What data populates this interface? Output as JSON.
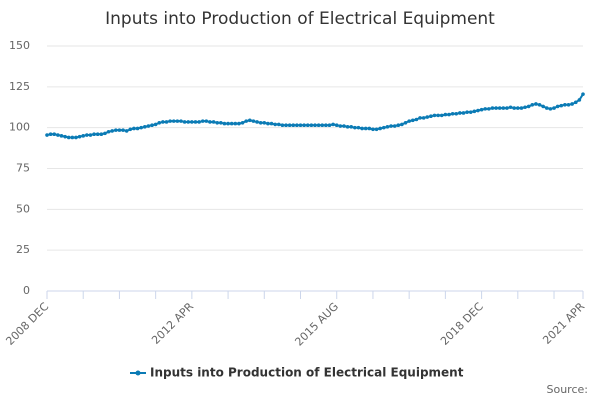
{
  "chart_data": {
    "type": "line",
    "title": "Inputs into Production of Electrical Equipment",
    "source": "Source:",
    "categories": [
      "2008 DEC",
      null,
      null,
      null,
      null,
      null,
      null,
      null,
      null,
      null,
      null,
      null,
      null,
      null,
      null,
      null,
      null,
      null,
      null,
      null,
      null,
      null,
      null,
      null,
      null,
      null,
      null,
      null,
      null,
      null,
      null,
      null,
      null,
      null,
      null,
      null,
      null,
      null,
      null,
      null,
      "2012 APR",
      null,
      null,
      null,
      null,
      null,
      null,
      null,
      null,
      null,
      null,
      null,
      null,
      null,
      null,
      null,
      null,
      null,
      null,
      null,
      null,
      null,
      null,
      null,
      null,
      null,
      null,
      null,
      null,
      null,
      null,
      null,
      null,
      null,
      null,
      null,
      null,
      null,
      null,
      null,
      "2015 AUG",
      null,
      null,
      null,
      null,
      null,
      null,
      null,
      null,
      null,
      null,
      null,
      null,
      null,
      null,
      null,
      null,
      null,
      null,
      null,
      null,
      null,
      null,
      null,
      null,
      null,
      null,
      null,
      null,
      null,
      null,
      null,
      null,
      null,
      null,
      null,
      null,
      null,
      null,
      null,
      "2018 DEC",
      null,
      null,
      null,
      null,
      null,
      null,
      null,
      null,
      null,
      null,
      null,
      null,
      null,
      null,
      null,
      null,
      null,
      null,
      null,
      null,
      null,
      null,
      null,
      null,
      null,
      null,
      null,
      "2021 APR"
    ],
    "series": [
      {
        "name": "Inputs into Production of Electrical Equipment",
        "color": "#0b7bb5",
        "values": [
          95.5,
          96,
          96,
          95.5,
          95,
          94.5,
          94,
          94,
          94,
          94.5,
          95,
          95.5,
          95.5,
          96,
          96,
          96,
          96.5,
          97.5,
          98,
          98.5,
          98.5,
          98.5,
          98,
          99,
          99.5,
          99.5,
          100,
          100.5,
          101,
          101.5,
          102,
          103,
          103.5,
          103.5,
          104,
          104,
          104,
          104,
          103.5,
          103.5,
          103.5,
          103.5,
          103.5,
          104,
          104,
          103.5,
          103.5,
          103,
          103,
          102.5,
          102.5,
          102.5,
          102.5,
          102.5,
          103,
          104,
          104.5,
          104,
          103.5,
          103,
          103,
          102.5,
          102.5,
          102,
          102,
          101.5,
          101.5,
          101.5,
          101.5,
          101.5,
          101.5,
          101.5,
          101.5,
          101.5,
          101.5,
          101.5,
          101.5,
          101.5,
          101.5,
          102,
          101.5,
          101,
          101,
          100.5,
          100.5,
          100,
          100,
          99.5,
          99.5,
          99.5,
          99,
          99,
          99.5,
          100,
          100.5,
          101,
          101,
          101.5,
          102,
          103,
          104,
          104.5,
          105,
          106,
          106,
          106.5,
          107,
          107.5,
          107.5,
          107.5,
          108,
          108,
          108.5,
          108.5,
          109,
          109,
          109.5,
          109.5,
          110,
          110.5,
          111,
          111.5,
          111.5,
          112,
          112,
          112,
          112,
          112,
          112.5,
          112,
          112,
          112,
          112.5,
          113,
          114,
          114.5,
          114,
          113,
          112,
          111.5,
          112,
          113,
          113.5,
          114,
          114,
          114.5,
          115.5,
          117,
          120.5
        ]
      }
    ],
    "ylim": [
      0,
      150
    ],
    "yticks": [
      0,
      25,
      50,
      75,
      100,
      125,
      150
    ],
    "grid": true
  }
}
